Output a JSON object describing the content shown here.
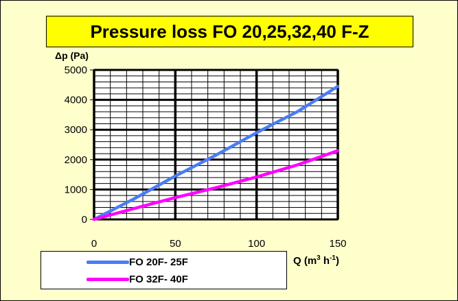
{
  "chart_data": {
    "type": "line",
    "title": "Pressure loss FO 20,25,32,40 F-Z",
    "ylabel": "Δp (Pa)",
    "xlabel_main": "Q (m",
    "xlabel_sup1": "3",
    "xlabel_mid": " h",
    "xlabel_sup2": "-1",
    "xlabel_end": ")",
    "xlim": [
      0,
      150
    ],
    "ylim": [
      0,
      5000
    ],
    "xticks": [
      0,
      50,
      100,
      150
    ],
    "yticks": [
      0,
      1000,
      2000,
      3000,
      4000,
      5000
    ],
    "grid": true,
    "legend_position": "bottom-left",
    "series": [
      {
        "name": "FO 20F- 25F",
        "color": "#4a7cf7",
        "x": [
          0,
          25,
          50,
          75,
          100,
          125,
          150
        ],
        "y": [
          0,
          700,
          1450,
          2150,
          2900,
          3600,
          4450
        ]
      },
      {
        "name": "FO 32F- 40F",
        "color": "#ff00ff",
        "x": [
          0,
          25,
          50,
          75,
          100,
          125,
          150
        ],
        "y": [
          0,
          370,
          730,
          1060,
          1420,
          1820,
          2300
        ]
      }
    ]
  }
}
